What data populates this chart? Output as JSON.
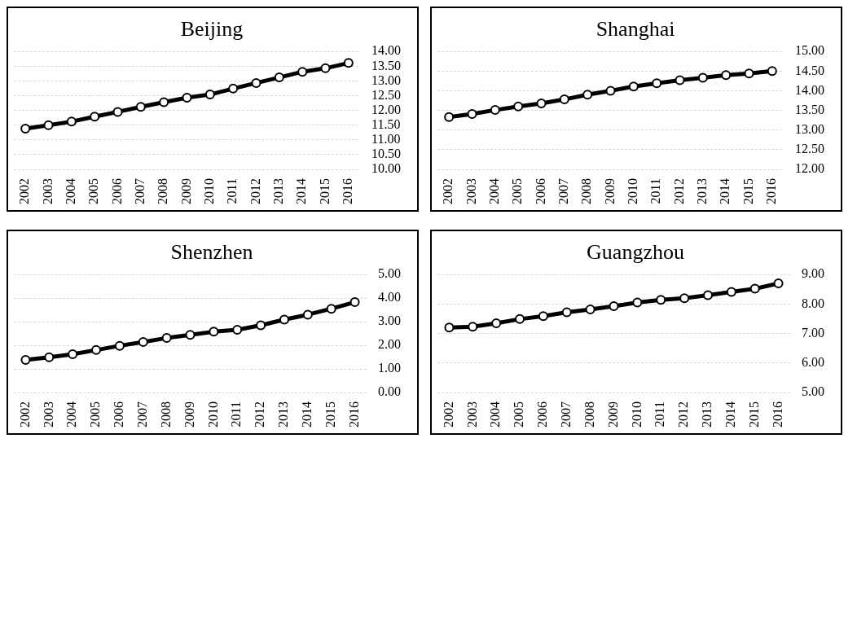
{
  "chart_data": [
    {
      "type": "line",
      "title": "Beijing",
      "categories": [
        "2002",
        "2003",
        "2004",
        "2005",
        "2006",
        "2007",
        "2008",
        "2009",
        "2010",
        "2011",
        "2012",
        "2013",
        "2014",
        "2015",
        "2016"
      ],
      "color": "#000000",
      "marker": "circle",
      "grid": "y",
      "values": [
        11.38,
        11.5,
        11.62,
        11.79,
        11.95,
        12.12,
        12.28,
        12.43,
        12.54,
        12.74,
        12.93,
        13.12,
        13.31,
        13.43,
        13.61
      ],
      "ylim": [
        10,
        14
      ],
      "yticks": [
        {
          "value": 10,
          "label": "10.00"
        },
        {
          "value": 10.5,
          "label": "10.50"
        },
        {
          "value": 11,
          "label": "11.00"
        },
        {
          "value": 11.5,
          "label": "11.50"
        },
        {
          "value": 12,
          "label": "12.00"
        },
        {
          "value": 12.5,
          "label": "12.50"
        },
        {
          "value": 13,
          "label": "13.00"
        },
        {
          "value": 13.5,
          "label": "13.50"
        },
        {
          "value": 14,
          "label": "14.00"
        }
      ]
    },
    {
      "type": "line",
      "title": "Shanghai",
      "categories": [
        "2002",
        "2003",
        "2004",
        "2005",
        "2006",
        "2007",
        "2008",
        "2009",
        "2010",
        "2011",
        "2012",
        "2013",
        "2014",
        "2015",
        "2016"
      ],
      "color": "#000000",
      "marker": "circle",
      "grid": "y",
      "values": [
        13.33,
        13.41,
        13.51,
        13.6,
        13.68,
        13.78,
        13.9,
        14.0,
        14.11,
        14.19,
        14.27,
        14.33,
        14.4,
        14.44,
        14.5
      ],
      "ylim": [
        12,
        15
      ],
      "yticks": [
        {
          "value": 12,
          "label": "12.00"
        },
        {
          "value": 12.5,
          "label": "12.50"
        },
        {
          "value": 13,
          "label": "13.00"
        },
        {
          "value": 13.5,
          "label": "13.50"
        },
        {
          "value": 14,
          "label": "14.00"
        },
        {
          "value": 14.5,
          "label": "14.50"
        },
        {
          "value": 15,
          "label": "15.00"
        }
      ]
    },
    {
      "type": "line",
      "title": "Shenzhen",
      "categories": [
        "2002",
        "2003",
        "2004",
        "2005",
        "2006",
        "2007",
        "2008",
        "2009",
        "2010",
        "2011",
        "2012",
        "2013",
        "2014",
        "2015",
        "2016"
      ],
      "color": "#000000",
      "marker": "circle",
      "grid": "y",
      "values": [
        1.38,
        1.49,
        1.62,
        1.8,
        1.98,
        2.14,
        2.31,
        2.44,
        2.58,
        2.66,
        2.85,
        3.09,
        3.3,
        3.55,
        3.83
      ],
      "ylim": [
        0,
        5
      ],
      "yticks": [
        {
          "value": 0,
          "label": "0.00"
        },
        {
          "value": 1,
          "label": "1.00"
        },
        {
          "value": 2,
          "label": "2.00"
        },
        {
          "value": 3,
          "label": "3.00"
        },
        {
          "value": 4,
          "label": "4.00"
        },
        {
          "value": 5,
          "label": "5.00"
        }
      ]
    },
    {
      "type": "line",
      "title": "Guangzhou",
      "categories": [
        "2002",
        "2003",
        "2004",
        "2005",
        "2006",
        "2007",
        "2008",
        "2009",
        "2010",
        "2011",
        "2012",
        "2013",
        "2014",
        "2015",
        "2016"
      ],
      "color": "#000000",
      "marker": "circle",
      "grid": "y",
      "values": [
        7.2,
        7.23,
        7.35,
        7.49,
        7.59,
        7.72,
        7.82,
        7.93,
        8.05,
        8.14,
        8.2,
        8.3,
        8.41,
        8.52,
        8.7
      ],
      "ylim": [
        5,
        9
      ],
      "yticks": [
        {
          "value": 5,
          "label": "5.00"
        },
        {
          "value": 6,
          "label": "6.00"
        },
        {
          "value": 7,
          "label": "7.00"
        },
        {
          "value": 8,
          "label": "8.00"
        },
        {
          "value": 9,
          "label": "9.00"
        }
      ]
    }
  ]
}
